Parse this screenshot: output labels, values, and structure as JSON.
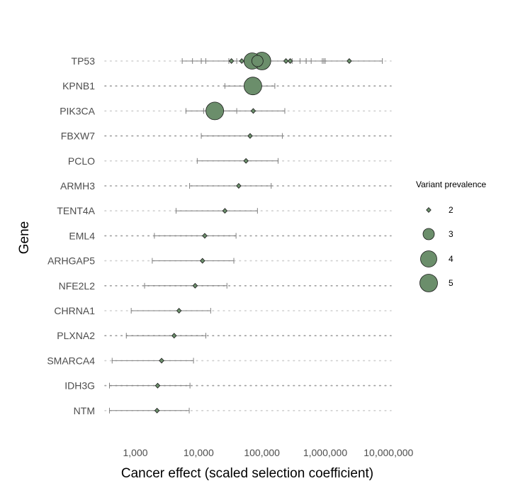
{
  "chart_data": {
    "type": "scatter",
    "xlabel": "Cancer effect (scaled selection coefficient)",
    "ylabel": "Gene",
    "x_scale": "log",
    "x_ticks": [
      {
        "value": 1000,
        "label": "1,000"
      },
      {
        "value": 10000,
        "label": "10,000"
      },
      {
        "value": 100000,
        "label": "100,000"
      },
      {
        "value": 1000000,
        "label": "1,000,000"
      },
      {
        "value": 10000000,
        "label": "10,000,000"
      }
    ],
    "xlim": [
      330,
      11000000
    ],
    "genes": [
      {
        "name": "TP53",
        "variants": [
          {
            "value": 100000,
            "low": 5500,
            "high": 950000,
            "prevalence": 5
          },
          {
            "value": 70000,
            "low": 8000,
            "high": 500000,
            "prevalence": 4
          },
          {
            "value": 85000,
            "low": 11000,
            "high": 600000,
            "prevalence": 3
          },
          {
            "value": 33000,
            "low": 11000,
            "high": 300000,
            "prevalence": 2
          },
          {
            "value": 48000,
            "low": 13000,
            "high": 400000,
            "prevalence": 2
          },
          {
            "value": 240000,
            "low": 30000,
            "high": 900000,
            "prevalence": 2
          },
          {
            "value": 280000,
            "low": 40000,
            "high": 1000000,
            "prevalence": 2
          },
          {
            "value": 2400000,
            "low": 500000,
            "high": 8000000,
            "prevalence": 2
          }
        ]
      },
      {
        "name": "KPNB1",
        "variants": [
          {
            "value": 72000,
            "low": 26000,
            "high": 160000,
            "prevalence": 5
          }
        ]
      },
      {
        "name": "PIK3CA",
        "variants": [
          {
            "value": 18000,
            "low": 6300,
            "high": 40000,
            "prevalence": 5
          },
          {
            "value": 73000,
            "low": 12000,
            "high": 230000,
            "prevalence": 2
          }
        ]
      },
      {
        "name": "FBXW7",
        "variants": [
          {
            "value": 65000,
            "low": 11000,
            "high": 210000,
            "prevalence": 2
          }
        ]
      },
      {
        "name": "PCLO",
        "variants": [
          {
            "value": 56000,
            "low": 9500,
            "high": 180000,
            "prevalence": 2
          }
        ]
      },
      {
        "name": "ARMH3",
        "variants": [
          {
            "value": 43000,
            "low": 7200,
            "high": 140000,
            "prevalence": 2
          }
        ]
      },
      {
        "name": "TENT4A",
        "variants": [
          {
            "value": 26000,
            "low": 4400,
            "high": 85000,
            "prevalence": 2
          }
        ]
      },
      {
        "name": "EML4",
        "variants": [
          {
            "value": 12500,
            "low": 2000,
            "high": 39000,
            "prevalence": 2
          }
        ]
      },
      {
        "name": "ARHGAP5",
        "variants": [
          {
            "value": 11500,
            "low": 1850,
            "high": 36000,
            "prevalence": 2
          }
        ]
      },
      {
        "name": "NFE2L2",
        "variants": [
          {
            "value": 8800,
            "low": 1400,
            "high": 28000,
            "prevalence": 2
          }
        ]
      },
      {
        "name": "CHRNA1",
        "variants": [
          {
            "value": 4900,
            "low": 860,
            "high": 15500,
            "prevalence": 2
          }
        ]
      },
      {
        "name": "PLXNA2",
        "variants": [
          {
            "value": 4100,
            "low": 720,
            "high": 13000,
            "prevalence": 2
          }
        ]
      },
      {
        "name": "SMARCA4",
        "variants": [
          {
            "value": 2600,
            "low": 430,
            "high": 8300,
            "prevalence": 2
          }
        ]
      },
      {
        "name": "IDH3G",
        "variants": [
          {
            "value": 2250,
            "low": 390,
            "high": 7300,
            "prevalence": 2
          }
        ]
      },
      {
        "name": "NTM",
        "variants": [
          {
            "value": 2200,
            "low": 390,
            "high": 7100,
            "prevalence": 2
          }
        ]
      }
    ],
    "legend": {
      "title": "Variant prevalence",
      "position": "right",
      "levels": [
        2,
        3,
        4,
        5
      ]
    },
    "colors": {
      "point_fill": "#6b8e6b",
      "point_stroke": "#1a1a1a",
      "error_bar": "#7f7f7f",
      "grid_dots": "#9e9e9e"
    }
  }
}
